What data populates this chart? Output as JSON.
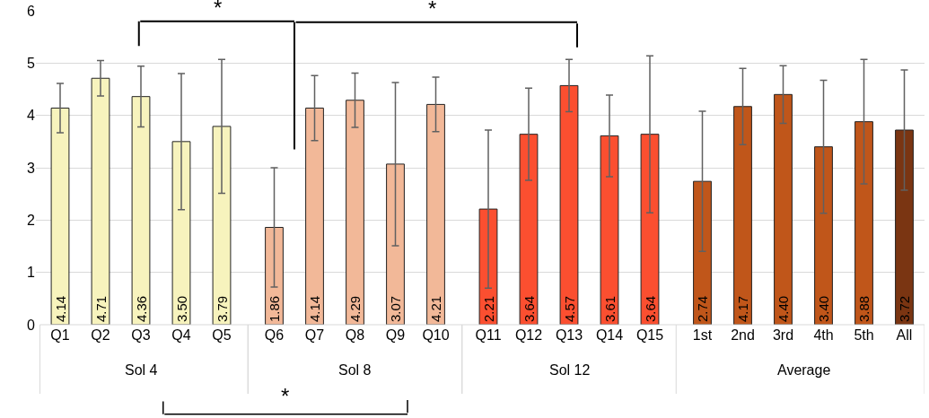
{
  "chart_data": {
    "type": "bar",
    "categories": [
      "Q1",
      "Q2",
      "Q3",
      "Q4",
      "Q5",
      "Q6",
      "Q7",
      "Q8",
      "Q9",
      "Q10",
      "Q11",
      "Q12",
      "Q13",
      "Q14",
      "Q15",
      "1st",
      "2nd",
      "3rd",
      "4th",
      "5th",
      "All"
    ],
    "series": [
      {
        "name": "Sol 4",
        "color": "#f7f3bd",
        "values": [
          4.14,
          4.71,
          4.36,
          3.5,
          3.79,
          null,
          null,
          null,
          null,
          null,
          null,
          null,
          null,
          null,
          null,
          null,
          null,
          null,
          null,
          null,
          null
        ],
        "errors": [
          0.47,
          0.34,
          0.58,
          1.3,
          1.28,
          null,
          null,
          null,
          null,
          null,
          null,
          null,
          null,
          null,
          null,
          null,
          null,
          null,
          null,
          null,
          null
        ],
        "value_labels": [
          "4.14",
          "4.71",
          "4.36",
          "3.50",
          "3.79",
          null,
          null,
          null,
          null,
          null,
          null,
          null,
          null,
          null,
          null,
          null,
          null,
          null,
          null,
          null,
          null
        ]
      },
      {
        "name": "Sol 8",
        "color": "#f2b898",
        "values": [
          null,
          null,
          null,
          null,
          null,
          1.86,
          4.14,
          4.29,
          3.07,
          4.21,
          null,
          null,
          null,
          null,
          null,
          null,
          null,
          null,
          null,
          null,
          null
        ],
        "errors": [
          null,
          null,
          null,
          null,
          null,
          1.14,
          0.62,
          0.52,
          1.56,
          0.52,
          null,
          null,
          null,
          null,
          null,
          null,
          null,
          null,
          null,
          null,
          null
        ],
        "value_labels": [
          null,
          null,
          null,
          null,
          null,
          "1.86",
          "4.14",
          "4.29",
          "3.07",
          "4.21",
          null,
          null,
          null,
          null,
          null,
          null,
          null,
          null,
          null,
          null,
          null
        ]
      },
      {
        "name": "Sol 12",
        "color": "#fb4f30",
        "values": [
          null,
          null,
          null,
          null,
          null,
          null,
          null,
          null,
          null,
          null,
          2.21,
          3.64,
          4.57,
          3.61,
          3.64,
          null,
          null,
          null,
          null,
          null,
          null
        ],
        "errors": [
          null,
          null,
          null,
          null,
          null,
          null,
          null,
          null,
          null,
          null,
          1.51,
          0.88,
          0.5,
          0.78,
          1.5,
          null,
          null,
          null,
          null,
          null,
          null
        ],
        "value_labels": [
          null,
          null,
          null,
          null,
          null,
          null,
          null,
          null,
          null,
          null,
          "2.21",
          "3.64",
          "4.57",
          "3.61",
          "3.64",
          null,
          null,
          null,
          null,
          null,
          null
        ]
      },
      {
        "name": "Average",
        "colors": [
          null,
          null,
          null,
          null,
          null,
          null,
          null,
          null,
          null,
          null,
          null,
          null,
          null,
          null,
          null,
          "#c0561a",
          "#c0561a",
          "#c0561a",
          "#c0561a",
          "#c0561a",
          "#7a3512"
        ],
        "values": [
          null,
          null,
          null,
          null,
          null,
          null,
          null,
          null,
          null,
          null,
          null,
          null,
          null,
          null,
          null,
          2.74,
          4.17,
          4.4,
          3.4,
          3.88,
          3.72
        ],
        "errors": [
          null,
          null,
          null,
          null,
          null,
          null,
          null,
          null,
          null,
          null,
          null,
          null,
          null,
          null,
          null,
          1.34,
          0.73,
          0.55,
          1.27,
          1.19,
          1.15
        ],
        "value_labels": [
          null,
          null,
          null,
          null,
          null,
          null,
          null,
          null,
          null,
          null,
          null,
          null,
          null,
          null,
          null,
          "2.74",
          "4.17",
          "4.40",
          "3.40",
          "3.88",
          "3.72"
        ]
      }
    ],
    "annotations": [
      "*",
      "*",
      "*"
    ],
    "ylim": [
      0,
      6
    ],
    "yticks": [
      0,
      1,
      2,
      3,
      4,
      5,
      6
    ],
    "grid": "y",
    "legend": false
  }
}
